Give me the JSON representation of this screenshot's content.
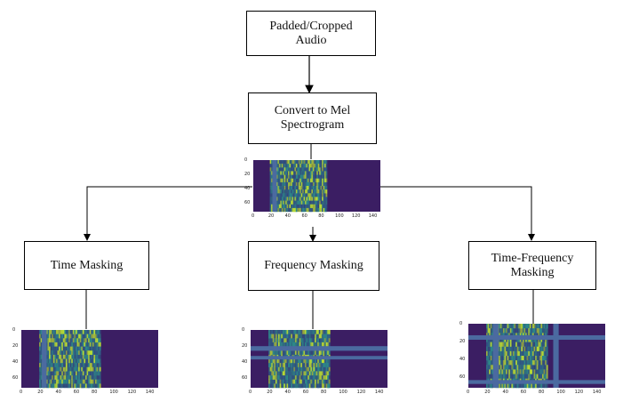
{
  "nodes": {
    "audio": "Padded/Cropped\nAudio",
    "mel": "Convert to Mel\nSpectrogram",
    "time": "Time Masking",
    "freq": "Frequency Masking",
    "tf": "Time-Frequency\nMasking"
  },
  "spectrogram_axes": {
    "x_ticks": [
      "0",
      "20",
      "40",
      "60",
      "80",
      "100",
      "120",
      "140"
    ],
    "y_ticks": [
      "0",
      "20",
      "40",
      "60"
    ]
  },
  "colors": {
    "background": "#3b1e63",
    "mask": "#4b6aa0",
    "signal_low": "#2c8a8a",
    "signal_high": "#b8de34"
  }
}
